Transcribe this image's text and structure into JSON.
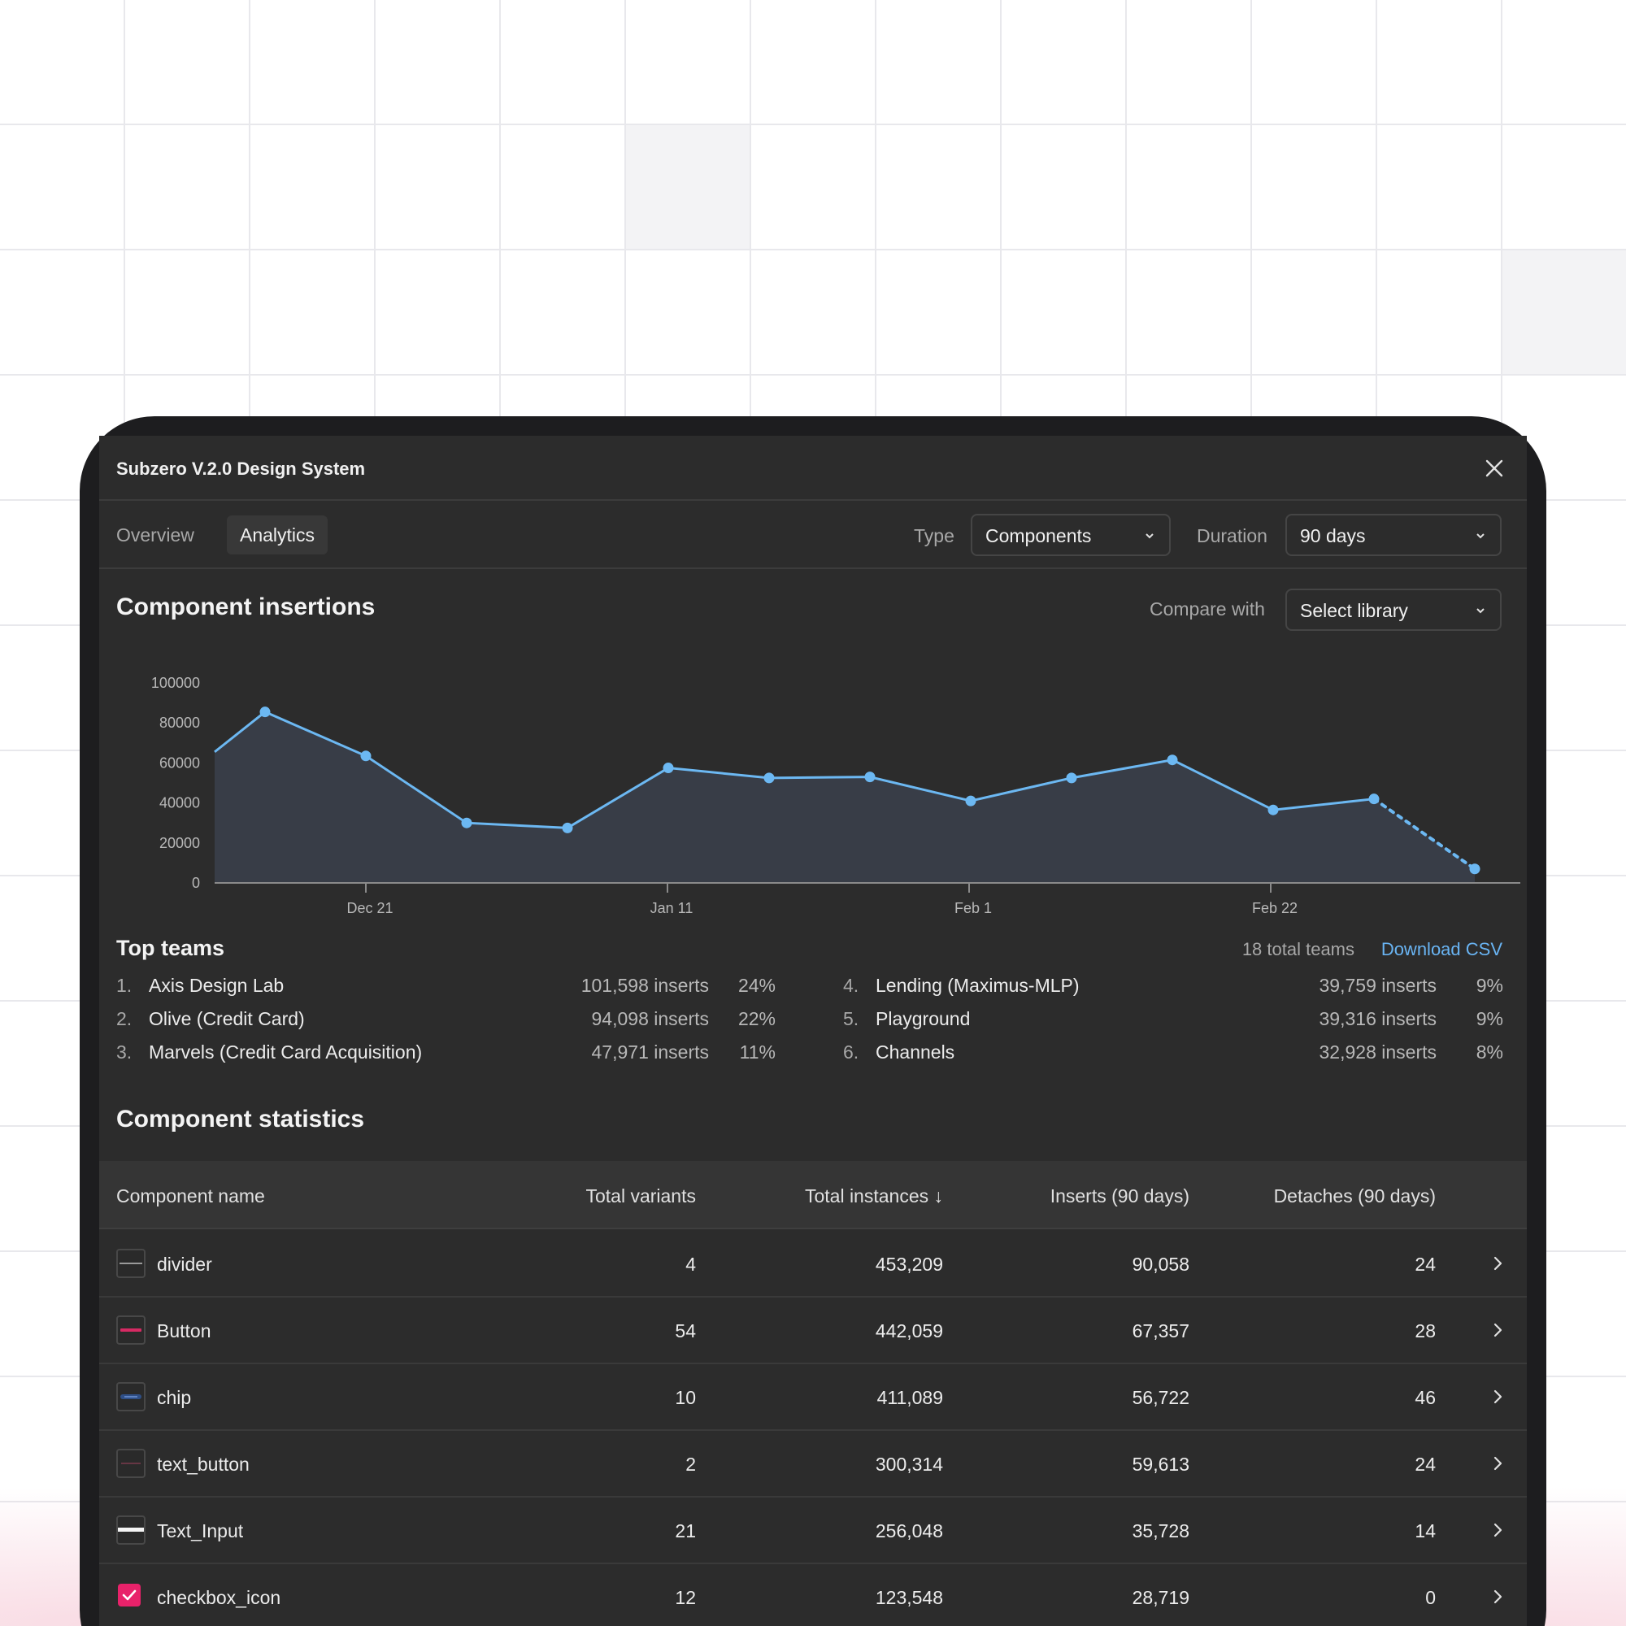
{
  "window": {
    "title": "Subzero V.2.0 Design System"
  },
  "tabs": [
    {
      "label": "Overview",
      "active": false
    },
    {
      "label": "Analytics",
      "active": true
    }
  ],
  "filters": {
    "type_label": "Type",
    "type_value": "Components",
    "duration_label": "Duration",
    "duration_value": "90 days",
    "compare_label": "Compare with",
    "compare_value": "Select library"
  },
  "insertions": {
    "title": "Component insertions"
  },
  "chart_data": {
    "type": "area",
    "title": "Component insertions",
    "xlabel": "",
    "ylabel": "",
    "ylim": [
      0,
      100000
    ],
    "y_ticks": [
      "100000",
      "80000",
      "60000",
      "40000",
      "20000",
      "0"
    ],
    "x_ticks": [
      "Dec 21",
      "Jan 11",
      "Feb 1",
      "Feb 22"
    ],
    "series": [
      {
        "values": [
          65500,
          85500,
          63500,
          30000,
          27500,
          57500,
          52500,
          53000,
          41000,
          52500,
          61500,
          36500,
          42000,
          7000
        ],
        "projected_last_segment": true
      }
    ],
    "grid": false,
    "colors": {
      "line": "#6cb8f2",
      "fill": "#383d47"
    }
  },
  "top_teams": {
    "title": "Top teams",
    "total": "18 total teams",
    "download": "Download CSV",
    "teams": [
      {
        "rank": "1.",
        "name": "Axis Design Lab",
        "inserts": "101,598 inserts",
        "pct": "24%"
      },
      {
        "rank": "2.",
        "name": "Olive (Credit Card)",
        "inserts": "94,098 inserts",
        "pct": "22%"
      },
      {
        "rank": "3.",
        "name": "Marvels (Credit Card Acquisition)",
        "inserts": "47,971 inserts",
        "pct": "11%"
      },
      {
        "rank": "4.",
        "name": "Lending (Maximus-MLP)",
        "inserts": "39,759 inserts",
        "pct": "9%"
      },
      {
        "rank": "5.",
        "name": "Playground",
        "inserts": "39,316 inserts",
        "pct": "9%"
      },
      {
        "rank": "6.",
        "name": "Channels",
        "inserts": "32,928 inserts",
        "pct": "8%"
      }
    ]
  },
  "stats": {
    "title": "Component statistics",
    "columns": {
      "name": "Component name",
      "variants": "Total variants",
      "instances": "Total instances ↓",
      "inserts": "Inserts (90 days)",
      "detaches": "Detaches (90 days)"
    },
    "rows": [
      {
        "thumb": "divider",
        "name": "divider",
        "variants": "4",
        "instances": "453,209",
        "inserts": "90,058",
        "detaches": "24"
      },
      {
        "thumb": "button",
        "name": "Button",
        "variants": "54",
        "instances": "442,059",
        "inserts": "67,357",
        "detaches": "28"
      },
      {
        "thumb": "chip",
        "name": "chip",
        "variants": "10",
        "instances": "411,089",
        "inserts": "56,722",
        "detaches": "46"
      },
      {
        "thumb": "text-button",
        "name": "text_button",
        "variants": "2",
        "instances": "300,314",
        "inserts": "59,613",
        "detaches": "24"
      },
      {
        "thumb": "text-input",
        "name": "Text_Input",
        "variants": "21",
        "instances": "256,048",
        "inserts": "35,728",
        "detaches": "14"
      },
      {
        "thumb": "checkbox",
        "name": "checkbox_icon",
        "variants": "12",
        "instances": "123,548",
        "inserts": "28,719",
        "detaches": "0"
      }
    ]
  },
  "colors": {
    "panel": "#2c2c2c",
    "accent_link": "#69b4f3",
    "chart_line": "#6cb8f2",
    "checkbox_pink": "#e8226a"
  }
}
